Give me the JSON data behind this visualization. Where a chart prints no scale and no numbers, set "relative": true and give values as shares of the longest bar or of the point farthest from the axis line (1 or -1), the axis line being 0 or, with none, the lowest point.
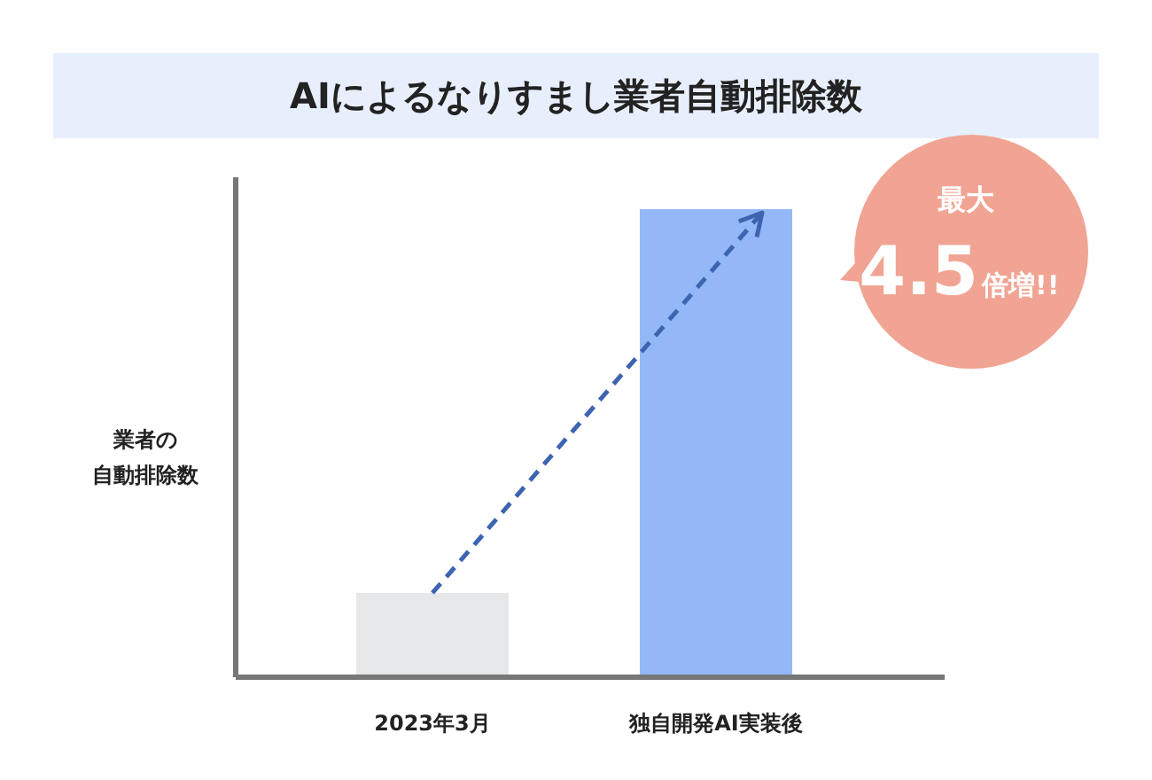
{
  "chart_data": {
    "type": "bar",
    "title": "AIによるなりすまし業者自動排除数",
    "ylabel": "業者の自動排除数",
    "categories": [
      "2023年3月",
      "独自開発AI実装後"
    ],
    "values": [
      0.18,
      1
    ],
    "colors": [
      "#e6e7e9",
      "#94b8f7"
    ],
    "relative": true,
    "annotations": [
      "最大",
      "4.5",
      "倍増!!"
    ]
  }
}
